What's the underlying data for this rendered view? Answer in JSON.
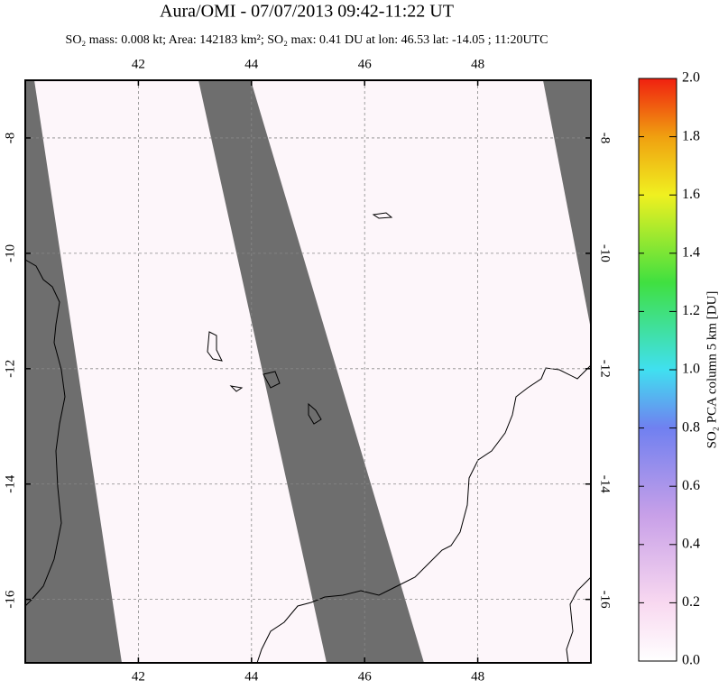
{
  "chart_data": {
    "type": "map",
    "title": "Aura/OMI - 07/07/2013 09:42-11:22 UT",
    "subtitle": "SO₂ mass: 0.008 kt; Area: 142183 km²; SO₂ max: 0.41 DU at lon: 46.53 lat: -14.05 ; 11:20UTC",
    "xlim": [
      40,
      50
    ],
    "ylim": [
      -17.1,
      -7
    ],
    "xticks": [
      42,
      44,
      46,
      48
    ],
    "yticks": [
      -8,
      -10,
      -12,
      -14,
      -16
    ],
    "grid": true,
    "colorbar": {
      "label": "SO₂ PCA column 5 km [DU]",
      "lim": [
        0,
        2
      ],
      "ticks": [
        {
          "value": 0,
          "label": "0.0"
        },
        {
          "value": 0.2,
          "label": "0.2"
        },
        {
          "value": 0.4,
          "label": "0.4"
        },
        {
          "value": 0.6,
          "label": "0.6"
        },
        {
          "value": 0.8,
          "label": "0.8"
        },
        {
          "value": 1,
          "label": "1.0"
        },
        {
          "value": 1.2,
          "label": "1.2"
        },
        {
          "value": 1.4,
          "label": "1.4"
        },
        {
          "value": 1.6,
          "label": "1.6"
        },
        {
          "value": 1.8,
          "label": "1.8"
        },
        {
          "value": 2,
          "label": "2.0"
        }
      ]
    }
  }
}
